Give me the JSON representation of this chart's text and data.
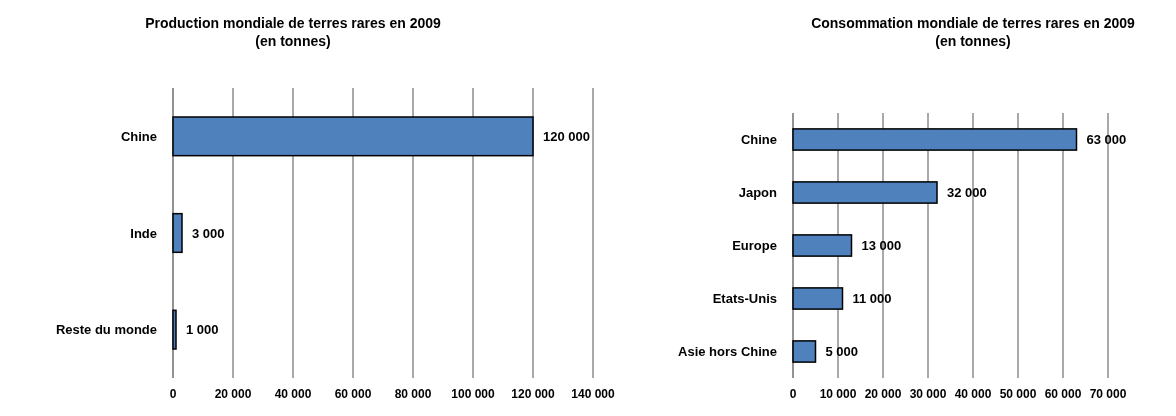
{
  "chart_data": [
    {
      "type": "bar",
      "orientation": "horizontal",
      "title": "Production mondiale de terres rares en 2009",
      "subtitle": "(en tonnes)",
      "categories": [
        "Chine",
        "Inde",
        "Reste du monde"
      ],
      "values": [
        120000,
        3000,
        1000
      ],
      "color": "#4f81bd",
      "value_labels": [
        "120 000",
        "3 000",
        "1 000"
      ],
      "xlim": [
        0,
        140000
      ],
      "xticks": [
        0,
        {
          "value": 20000,
          "label": "20 000"
        },
        {
          "value": 40000,
          "label": "40 000"
        },
        {
          "value": 60000,
          "label": "60 000"
        },
        {
          "value": 80000,
          "label": "80 000"
        },
        {
          "value": 100000,
          "label": "100 000"
        },
        {
          "value": 120000,
          "label": "120 000"
        },
        {
          "value": 140000,
          "label": "140 000"
        }
      ],
      "grid": "x"
    },
    {
      "type": "bar",
      "orientation": "horizontal",
      "title": "Consommation mondiale de terres rares en 2009",
      "subtitle": "(en tonnes)",
      "categories": [
        "Chine",
        "Japon",
        "Europe",
        "Etats-Unis",
        "Asie hors Chine"
      ],
      "values": [
        63000,
        32000,
        13000,
        11000,
        5000
      ],
      "color": "#4f81bd",
      "value_labels": [
        "63 000",
        "32 000",
        "13 000",
        "11 000",
        "5 000"
      ],
      "xlim": [
        0,
        70000
      ],
      "xticks": [
        0,
        {
          "value": 10000,
          "label": "10 000"
        },
        {
          "value": 20000,
          "label": "20 000"
        },
        {
          "value": 30000,
          "label": "30 000"
        },
        {
          "value": 40000,
          "label": "40 000"
        },
        {
          "value": 50000,
          "label": "50 000"
        },
        {
          "value": 60000,
          "label": "60 000"
        },
        {
          "value": 70000,
          "label": "70 000"
        }
      ],
      "grid": "x"
    }
  ]
}
